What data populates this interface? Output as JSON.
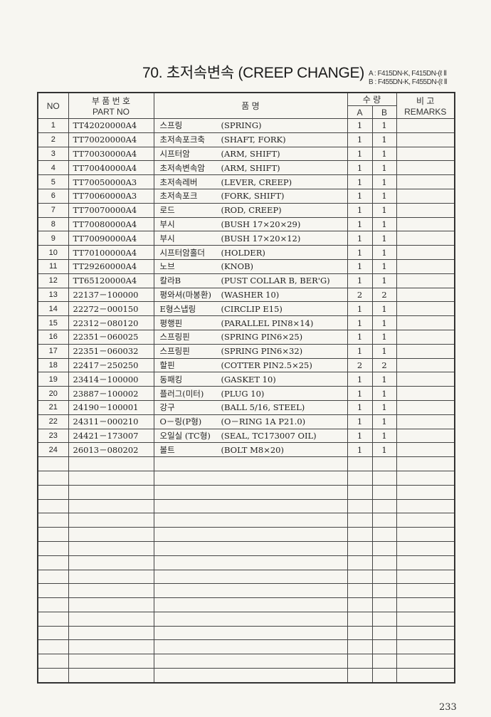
{
  "header": {
    "title": "70. 초저속변속 (CREEP CHANGE)",
    "model_a": "A : F415DN-K, F415DN-(ℓ Ⅱ",
    "model_b": "B : F455DN-K, F455DN-(ℓ Ⅱ"
  },
  "columns": {
    "no": "NO",
    "part_ko": "부 품 번 호",
    "part_en": "PART  NO",
    "name": "품          명",
    "qty": "수      량",
    "a": "A",
    "b": "B",
    "remarks_ko": "비      고",
    "remarks_en": "REMARKS"
  },
  "rows": [
    {
      "no": "1",
      "part": "TT42020000A4",
      "ko": "스프링",
      "en": "(SPRING)",
      "a": "1",
      "b": "1"
    },
    {
      "no": "2",
      "part": "TT70020000A4",
      "ko": "초저속포크축",
      "en": "(SHAFT, FORK)",
      "a": "1",
      "b": "1"
    },
    {
      "no": "3",
      "part": "TT70030000A4",
      "ko": "시프터암",
      "en": "(ARM, SHIFT)",
      "a": "1",
      "b": "1"
    },
    {
      "no": "4",
      "part": "TT70040000A4",
      "ko": "초저속변속암",
      "en": "(ARM, SHIFT)",
      "a": "1",
      "b": "1"
    },
    {
      "no": "5",
      "part": "TT70050000A3",
      "ko": "초저속레버",
      "en": "(LEVER, CREEP)",
      "a": "1",
      "b": "1"
    },
    {
      "no": "6",
      "part": "TT70060000A3",
      "ko": "초저속포크",
      "en": "(FORK, SHIFT)",
      "a": "1",
      "b": "1"
    },
    {
      "no": "7",
      "part": "TT70070000A4",
      "ko": "로드",
      "en": "(ROD, CREEP)",
      "a": "1",
      "b": "1"
    },
    {
      "no": "8",
      "part": "TT70080000A4",
      "ko": "부시",
      "en": "(BUSH 17×20×29)",
      "a": "1",
      "b": "1"
    },
    {
      "no": "9",
      "part": "TT70090000A4",
      "ko": "부시",
      "en": "(BUSH 17×20×12)",
      "a": "1",
      "b": "1"
    },
    {
      "no": "10",
      "part": "TT70100000A4",
      "ko": "시프터암홀더",
      "en": "(HOLDER)",
      "a": "1",
      "b": "1"
    },
    {
      "no": "11",
      "part": "TT29260000A4",
      "ko": "노브",
      "en": "(KNOB)",
      "a": "1",
      "b": "1"
    },
    {
      "no": "12",
      "part": "TT65120000A4",
      "ko": "칼라B",
      "en": "(PUST COLLAR B, BER'G)",
      "a": "1",
      "b": "1"
    },
    {
      "no": "13",
      "part": "22137－100000",
      "ko": "평와셔(마봉환)",
      "en": "(WASHER 10)",
      "a": "2",
      "b": "2"
    },
    {
      "no": "14",
      "part": "22272－000150",
      "ko": "E형스냅링",
      "en": "(CIRCLIP E15)",
      "a": "1",
      "b": "1"
    },
    {
      "no": "15",
      "part": "22312－080120",
      "ko": "평행핀",
      "en": "(PARALLEL PIN8×14)",
      "a": "1",
      "b": "1"
    },
    {
      "no": "16",
      "part": "22351－060025",
      "ko": "스프링핀",
      "en": "(SPRING PIN6×25)",
      "a": "1",
      "b": "1"
    },
    {
      "no": "17",
      "part": "22351－060032",
      "ko": "스프링핀",
      "en": "(SPRING PIN6×32)",
      "a": "1",
      "b": "1"
    },
    {
      "no": "18",
      "part": "22417－250250",
      "ko": "할핀",
      "en": "(COTTER PIN2.5×25)",
      "a": "2",
      "b": "2"
    },
    {
      "no": "19",
      "part": "23414－100000",
      "ko": "동패킹",
      "en": "(GASKET 10)",
      "a": "1",
      "b": "1"
    },
    {
      "no": "20",
      "part": "23887－100002",
      "ko": "플러그(미터)",
      "en": "(PLUG 10)",
      "a": "1",
      "b": "1"
    },
    {
      "no": "21",
      "part": "24190－100001",
      "ko": "강구",
      "en": "(BALL 5/16, STEEL)",
      "a": "1",
      "b": "1"
    },
    {
      "no": "22",
      "part": "24311－000210",
      "ko": "O－링(P형)",
      "en": "(O－RING 1A P21.0)",
      "a": "1",
      "b": "1"
    },
    {
      "no": "23",
      "part": "24421－173007",
      "ko": "오일실 (TC형)",
      "en": "(SEAL, TC173007 OIL)",
      "a": "1",
      "b": "1"
    },
    {
      "no": "24",
      "part": "26013－080202",
      "ko": "볼트",
      "en": "(BOLT M8×20)",
      "a": "1",
      "b": "1"
    }
  ],
  "footer": {
    "page_number": "233"
  }
}
